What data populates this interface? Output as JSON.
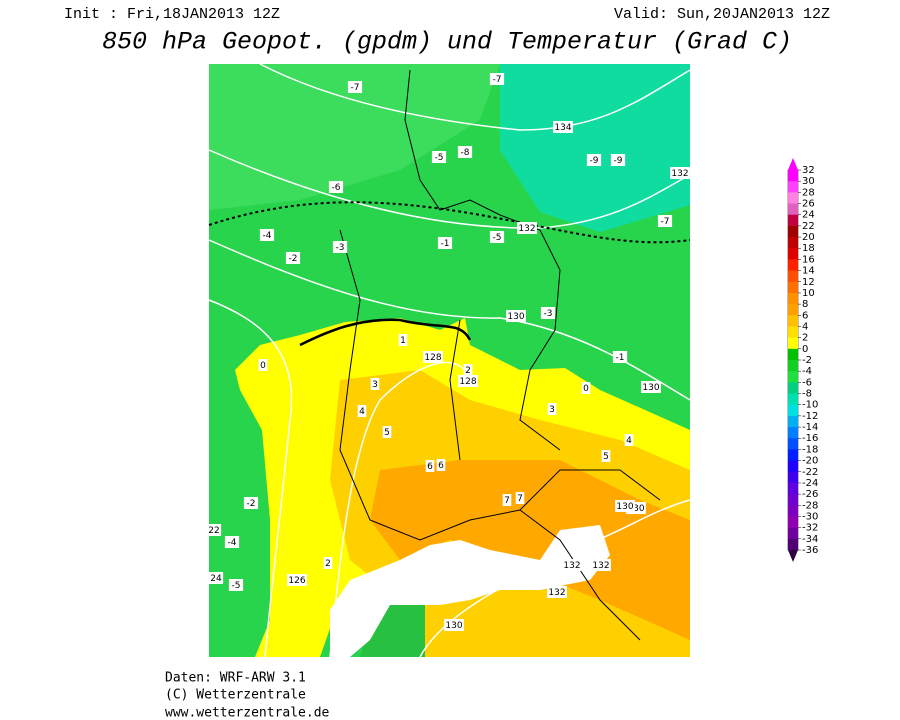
{
  "header": {
    "init": "Init : Fri,18JAN2013 12Z",
    "valid": "Valid: Sun,20JAN2013 12Z",
    "title": "850 hPa Geopot. (gpdm) und Temperatur (Grad C)"
  },
  "colorbar": {
    "levels": [
      32,
      30,
      28,
      26,
      24,
      22,
      20,
      18,
      16,
      14,
      12,
      10,
      8,
      6,
      4,
      2,
      0,
      -2,
      -4,
      -6,
      -8,
      -10,
      -12,
      -14,
      -16,
      -18,
      -20,
      -22,
      -24,
      -26,
      -28,
      -30,
      -32,
      -34,
      -36
    ],
    "colors": [
      "#ff00ff",
      "#ff40ff",
      "#ff80e0",
      "#e060c0",
      "#c00040",
      "#a00000",
      "#c00000",
      "#e00000",
      "#ff2000",
      "#ff5000",
      "#ff7000",
      "#ff9000",
      "#ffa000",
      "#ffc000",
      "#ffe000",
      "#ffff00",
      "#00c000",
      "#10d020",
      "#20e040",
      "#00d080",
      "#00e0b0",
      "#00e0e0",
      "#00b0f0",
      "#0080ff",
      "#0050ff",
      "#0020ff",
      "#2000ff",
      "#4000f0",
      "#6000e0",
      "#7000d0",
      "#8000c0",
      "#9000b0",
      "#7000a0",
      "#500070"
    ],
    "top_color": "#ff00ff",
    "bottom_color": "#300040"
  },
  "map": {
    "labels": [
      "134",
      "132",
      "132",
      "130",
      "130",
      "128",
      "128",
      "126",
      "130",
      "130",
      "132",
      "132",
      "132",
      "130",
      "-7",
      "-8",
      "-7",
      "-6",
      "-5",
      "-4",
      "-3",
      "-2",
      "-1",
      "0",
      "1",
      "2",
      "3",
      "4",
      "5",
      "6",
      "7",
      "-9",
      "-9",
      "-7",
      "-5",
      "-3",
      "-1",
      "0",
      "3",
      "4",
      "5",
      "6",
      "7",
      "2",
      "-2",
      "-4",
      "-5",
      "24",
      "22"
    ]
  },
  "footer": {
    "line1": "Daten: WRF-ARW 3.1",
    "line2": "(C) Wetterzentrale",
    "line3": "www.wetterzentrale.de"
  }
}
